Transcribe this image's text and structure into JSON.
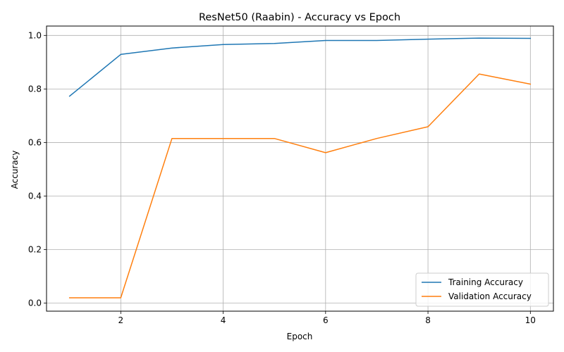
{
  "chart_data": {
    "type": "line",
    "title": "ResNet50 (Raabin) - Accuracy vs Epoch",
    "xlabel": "Epoch",
    "ylabel": "Accuracy",
    "x": [
      1,
      2,
      3,
      4,
      5,
      6,
      7,
      8,
      9,
      10
    ],
    "xlim": [
      0.55,
      10.45
    ],
    "ylim": [
      -0.03,
      1.035
    ],
    "xticks": [
      2,
      4,
      6,
      8,
      10
    ],
    "yticks": [
      0.0,
      0.2,
      0.4,
      0.6,
      0.8,
      1.0
    ],
    "ytick_labels": [
      "0.0",
      "0.2",
      "0.4",
      "0.6",
      "0.8",
      "1.0"
    ],
    "grid": true,
    "legend_position": "lower-right",
    "series": [
      {
        "name": "Training Accuracy",
        "color": "#1f77b4",
        "values": [
          0.773,
          0.929,
          0.953,
          0.966,
          0.97,
          0.981,
          0.981,
          0.986,
          0.99,
          0.989
        ]
      },
      {
        "name": "Validation Accuracy",
        "color": "#ff7f0e",
        "values": [
          0.02,
          0.02,
          0.615,
          0.615,
          0.615,
          0.562,
          0.615,
          0.659,
          0.856,
          0.818
        ]
      }
    ]
  }
}
